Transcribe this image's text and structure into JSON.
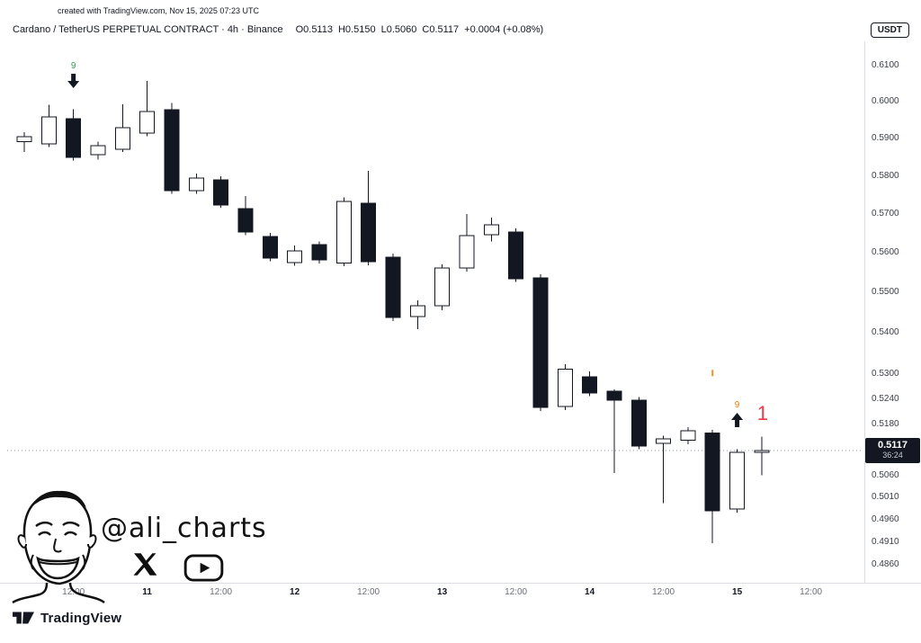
{
  "credit": "created with TradingView.com, Nov 15, 2025 07:23 UTC",
  "header": {
    "title": "Cardano / TetherUS PERPETUAL CONTRACT · 4h · Binance",
    "ohlc": [
      {
        "label": "O",
        "value": "0.5113"
      },
      {
        "label": "H",
        "value": "0.5150"
      },
      {
        "label": "L",
        "value": "0.5060"
      },
      {
        "label": "C",
        "value": "0.5117"
      }
    ],
    "change": "+0.0004 (+0.08%)",
    "currency_badge": "USDT"
  },
  "chart_data": {
    "type": "candlestick",
    "interval": "4h",
    "price_scale": "log",
    "ylim": [
      0.486,
      0.61
    ],
    "up_color": "#ffffff",
    "down_color": "#131722",
    "y_ticks": [
      "0.6100",
      "0.6000",
      "0.5900",
      "0.5800",
      "0.5700",
      "0.5600",
      "0.5500",
      "0.5400",
      "0.5300",
      "0.5240",
      "0.5180",
      "0.5060",
      "0.5010",
      "0.4960",
      "0.4910",
      "0.4860"
    ],
    "x_ticks": [
      {
        "label": "12:00",
        "index": 2,
        "major": false
      },
      {
        "label": "11",
        "index": 5,
        "major": true
      },
      {
        "label": "12:00",
        "index": 8,
        "major": false
      },
      {
        "label": "12",
        "index": 11,
        "major": true
      },
      {
        "label": "12:00",
        "index": 14,
        "major": false
      },
      {
        "label": "13",
        "index": 17,
        "major": true
      },
      {
        "label": "12:00",
        "index": 20,
        "major": false
      },
      {
        "label": "14",
        "index": 23,
        "major": true
      },
      {
        "label": "12:00",
        "index": 26,
        "major": false
      },
      {
        "label": "15",
        "index": 29,
        "major": true
      },
      {
        "label": "12:00",
        "index": 32,
        "major": false
      }
    ],
    "last_price": "0.5117",
    "countdown": "36:24",
    "candles": [
      {
        "t": "Nov 10 04:00",
        "o": 0.589,
        "h": 0.5915,
        "l": 0.5862,
        "c": 0.5903
      },
      {
        "t": "Nov 10 08:00",
        "o": 0.5884,
        "h": 0.599,
        "l": 0.5876,
        "c": 0.5957
      },
      {
        "t": "Nov 10 12:00",
        "o": 0.5952,
        "h": 0.5978,
        "l": 0.584,
        "c": 0.5848
      },
      {
        "t": "Nov 10 16:00",
        "o": 0.5855,
        "h": 0.589,
        "l": 0.5842,
        "c": 0.5879
      },
      {
        "t": "Nov 10 20:00",
        "o": 0.587,
        "h": 0.5991,
        "l": 0.5862,
        "c": 0.5928
      },
      {
        "t": "Nov 11 00:00",
        "o": 0.5913,
        "h": 0.6055,
        "l": 0.5905,
        "c": 0.5971
      },
      {
        "t": "Nov 11 04:00",
        "o": 0.5976,
        "h": 0.5995,
        "l": 0.5752,
        "c": 0.576
      },
      {
        "t": "Nov 11 08:00",
        "o": 0.576,
        "h": 0.5805,
        "l": 0.5752,
        "c": 0.5793
      },
      {
        "t": "Nov 11 12:00",
        "o": 0.5788,
        "h": 0.5798,
        "l": 0.5716,
        "c": 0.5723
      },
      {
        "t": "Nov 11 16:00",
        "o": 0.5713,
        "h": 0.5746,
        "l": 0.5645,
        "c": 0.5653
      },
      {
        "t": "Nov 11 20:00",
        "o": 0.5641,
        "h": 0.565,
        "l": 0.5578,
        "c": 0.5586
      },
      {
        "t": "Nov 12 00:00",
        "o": 0.5575,
        "h": 0.5618,
        "l": 0.5566,
        "c": 0.5604
      },
      {
        "t": "Nov 12 04:00",
        "o": 0.562,
        "h": 0.5628,
        "l": 0.5572,
        "c": 0.5581
      },
      {
        "t": "Nov 12 08:00",
        "o": 0.5573,
        "h": 0.5742,
        "l": 0.5565,
        "c": 0.5732
      },
      {
        "t": "Nov 12 12:00",
        "o": 0.5727,
        "h": 0.5812,
        "l": 0.5568,
        "c": 0.5577
      },
      {
        "t": "Nov 12 16:00",
        "o": 0.5588,
        "h": 0.5597,
        "l": 0.5428,
        "c": 0.5437
      },
      {
        "t": "Nov 12 20:00",
        "o": 0.5439,
        "h": 0.5479,
        "l": 0.5408,
        "c": 0.5466
      },
      {
        "t": "Nov 13 00:00",
        "o": 0.5466,
        "h": 0.557,
        "l": 0.5455,
        "c": 0.5561
      },
      {
        "t": "Nov 13 04:00",
        "o": 0.5561,
        "h": 0.5699,
        "l": 0.5552,
        "c": 0.5643
      },
      {
        "t": "Nov 13 08:00",
        "o": 0.5646,
        "h": 0.569,
        "l": 0.5628,
        "c": 0.5671
      },
      {
        "t": "Nov 13 12:00",
        "o": 0.5653,
        "h": 0.5662,
        "l": 0.5526,
        "c": 0.5534
      },
      {
        "t": "Nov 13 16:00",
        "o": 0.5536,
        "h": 0.5545,
        "l": 0.521,
        "c": 0.5219
      },
      {
        "t": "Nov 13 20:00",
        "o": 0.5221,
        "h": 0.5322,
        "l": 0.5212,
        "c": 0.531
      },
      {
        "t": "Nov 14 00:00",
        "o": 0.5292,
        "h": 0.5305,
        "l": 0.5246,
        "c": 0.5253
      },
      {
        "t": "Nov 14 04:00",
        "o": 0.5257,
        "h": 0.5262,
        "l": 0.5065,
        "c": 0.5236
      },
      {
        "t": "Nov 14 08:00",
        "o": 0.5236,
        "h": 0.5243,
        "l": 0.512,
        "c": 0.5128
      },
      {
        "t": "Nov 14 12:00",
        "o": 0.5134,
        "h": 0.5152,
        "l": 0.4996,
        "c": 0.5145
      },
      {
        "t": "Nov 14 16:00",
        "o": 0.5141,
        "h": 0.5172,
        "l": 0.5132,
        "c": 0.5164
      },
      {
        "t": "Nov 14 20:00",
        "o": 0.5158,
        "h": 0.5166,
        "l": 0.4906,
        "c": 0.4979
      },
      {
        "t": "Nov 15 00:00",
        "o": 0.4983,
        "h": 0.512,
        "l": 0.4975,
        "c": 0.5113
      },
      {
        "t": "Nov 15 04:00",
        "o": 0.5113,
        "h": 0.515,
        "l": 0.506,
        "c": 0.5117
      }
    ],
    "annotations": [
      {
        "kind": "td-setup-9-sell",
        "text": "9",
        "color": "#2e9e56",
        "candle": 2
      },
      {
        "kind": "mark",
        "color": "#ff8d1a",
        "candle": 28,
        "price": 0.53
      },
      {
        "kind": "td-setup-9-buy",
        "text": "9",
        "color": "#f57c00",
        "candle": 29
      },
      {
        "kind": "countdown-1",
        "text": "1",
        "color": "#f23645",
        "candle": 30,
        "price": 0.5215
      }
    ]
  },
  "watermark": {
    "handle": "@ali_charts"
  },
  "footer": {
    "brand": "TradingView"
  }
}
